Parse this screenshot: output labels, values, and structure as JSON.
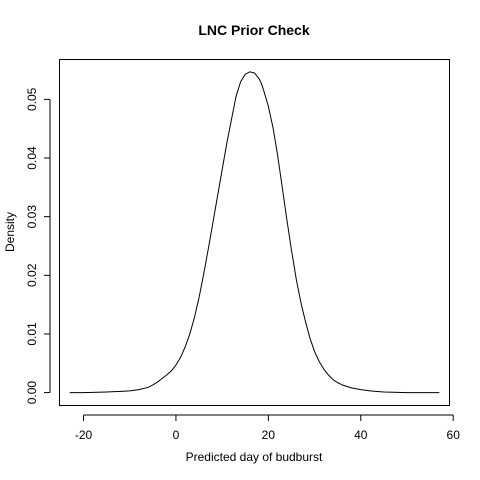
{
  "chart_data": {
    "type": "line",
    "title": "LNC Prior Check",
    "xlabel": "Predicted day of budburst",
    "ylabel": "Density",
    "xlim": [
      -25.2,
      59.2
    ],
    "ylim": [
      -0.0022,
      0.0568
    ],
    "x_ticks": [
      -20,
      0,
      20,
      40,
      60
    ],
    "x_tick_labels": [
      "-20",
      "0",
      "20",
      "40",
      "60"
    ],
    "y_ticks": [
      0.0,
      0.01,
      0.02,
      0.03,
      0.04,
      0.05
    ],
    "y_tick_labels": [
      "0.00",
      "0.01",
      "0.02",
      "0.03",
      "0.04",
      "0.05"
    ],
    "grid": false,
    "legend": "none",
    "colors": {
      "line": "#000000",
      "axes": "#000000",
      "background": "#ffffff"
    },
    "series": [
      {
        "x": [
          -23,
          -20,
          -15,
          -12,
          -10,
          -8,
          -6,
          -5,
          -4,
          -3,
          -2,
          -1,
          0,
          1,
          2,
          3,
          4,
          5,
          6,
          7,
          8,
          9,
          10,
          11,
          12,
          13,
          14,
          15,
          16,
          17,
          17.5,
          18,
          18.5,
          19,
          20,
          21,
          22,
          23,
          24,
          25,
          26,
          27,
          28,
          29,
          30,
          31,
          32,
          33,
          34,
          35,
          36,
          38,
          40,
          42,
          45,
          50,
          57
        ],
        "y": [
          0.0,
          0.0,
          0.0001,
          0.0002,
          0.0003,
          0.0005,
          0.0009,
          0.0013,
          0.0018,
          0.0024,
          0.003,
          0.0037,
          0.0047,
          0.006,
          0.0078,
          0.01,
          0.0128,
          0.0162,
          0.0202,
          0.0245,
          0.029,
          0.0335,
          0.038,
          0.0425,
          0.0465,
          0.0505,
          0.053,
          0.0543,
          0.0547,
          0.0545,
          0.054,
          0.0535,
          0.0527,
          0.0515,
          0.0488,
          0.0452,
          0.0405,
          0.035,
          0.0295,
          0.0243,
          0.0195,
          0.0155,
          0.0122,
          0.0093,
          0.007,
          0.0053,
          0.004,
          0.003,
          0.0022,
          0.0017,
          0.0013,
          0.0008,
          0.0005,
          0.0003,
          0.0001,
          0.0,
          0.0
        ]
      }
    ]
  }
}
